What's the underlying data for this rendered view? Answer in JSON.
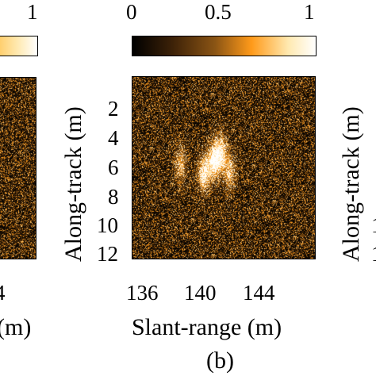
{
  "chart_data": [
    {
      "panel": "left (partial)",
      "type": "heatmap",
      "colorbar": {
        "ticks": [
          "1"
        ],
        "range": [
          0,
          1
        ]
      },
      "ylabel": "Along-track (m)",
      "yticks": [],
      "xtick_fragment": "4",
      "xlabel_fragment": "(m)"
    },
    {
      "panel": "(b)",
      "type": "heatmap",
      "colorbar": {
        "ticks": [
          "0",
          "0.5",
          "1"
        ],
        "range": [
          0,
          1
        ]
      },
      "xlabel": "Slant-range (m)",
      "ylabel": "Along-track (m)",
      "xticks": [
        "136",
        "140",
        "144"
      ],
      "yticks": [
        "2",
        "4",
        "6",
        "8",
        "10",
        "12"
      ],
      "xlim": [
        134,
        149
      ],
      "ylim": [
        0.5,
        12.5
      ],
      "colormap": [
        "#000000",
        "#3d2208",
        "#8a5414",
        "#ff9a1a",
        "#ffe9b0",
        "#ffffff"
      ],
      "highlights": [
        {
          "slant_range": 140.6,
          "along_track": 6.0,
          "intensity": 1.0
        },
        {
          "slant_range": 139.8,
          "along_track": 6.8,
          "intensity": 0.9
        },
        {
          "slant_range": 141.2,
          "along_track": 5.5,
          "intensity": 0.85
        },
        {
          "slant_range": 137.9,
          "along_track": 6.2,
          "intensity": 0.55
        },
        {
          "slant_range": 141.9,
          "along_track": 6.7,
          "intensity": 0.6
        }
      ]
    },
    {
      "panel": "right (partial)",
      "ylabel": "Along-track (m)",
      "ytick_fragments": [
        "1",
        "1"
      ]
    }
  ]
}
